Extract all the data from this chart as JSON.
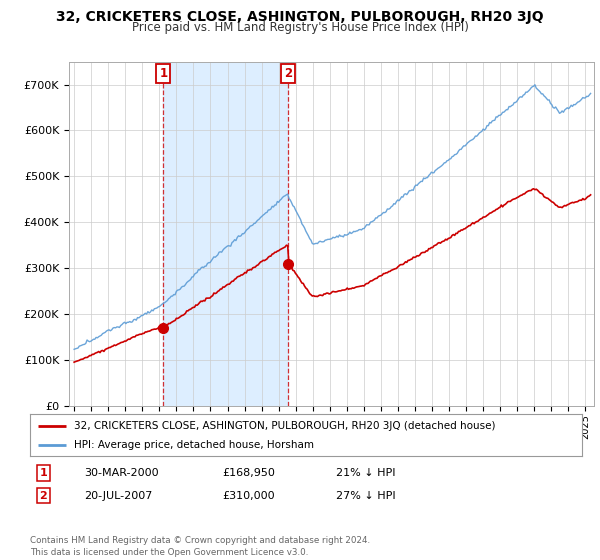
{
  "title": "32, CRICKETERS CLOSE, ASHINGTON, PULBOROUGH, RH20 3JQ",
  "subtitle": "Price paid vs. HM Land Registry's House Price Index (HPI)",
  "ylabel_ticks": [
    "£0",
    "£100K",
    "£200K",
    "£300K",
    "£400K",
    "£500K",
    "£600K",
    "£700K"
  ],
  "ytick_vals": [
    0,
    100000,
    200000,
    300000,
    400000,
    500000,
    600000,
    700000
  ],
  "ylim": [
    0,
    750000
  ],
  "xlim_start": 1994.7,
  "xlim_end": 2025.5,
  "sale1_date": 2000.23,
  "sale1_price": 168950,
  "sale1_label": "1",
  "sale2_date": 2007.55,
  "sale2_price": 310000,
  "sale2_label": "2",
  "line_color_property": "#cc0000",
  "line_color_hpi": "#5b9bd5",
  "shade_color": "#ddeeff",
  "legend_label1": "32, CRICKETERS CLOSE, ASHINGTON, PULBOROUGH, RH20 3JQ (detached house)",
  "legend_label2": "HPI: Average price, detached house, Horsham",
  "footer": "Contains HM Land Registry data © Crown copyright and database right 2024.\nThis data is licensed under the Open Government Licence v3.0.",
  "background_color": "#ffffff",
  "plot_bg_color": "#ffffff",
  "grid_color": "#cccccc"
}
